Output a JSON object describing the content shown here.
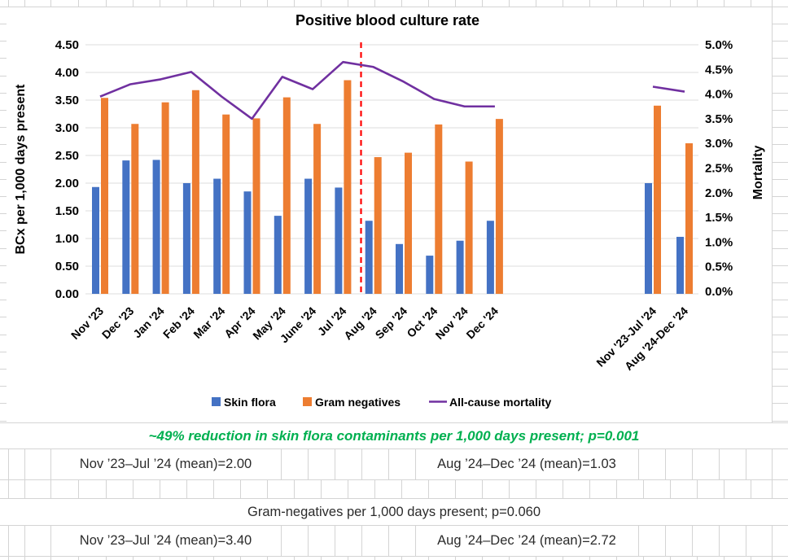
{
  "sheet": {
    "green_note": "~49% reduction in skin flora contaminants per 1,000 days present; p=0.001",
    "skin_mean_before": "Nov ’23–Jul ’24 (mean)=2.00",
    "skin_mean_after": "Aug ’24–Dec ’24 (mean)=1.03",
    "gram_header": "Gram-negatives per 1,000 days present; p=0.060",
    "gram_mean_before": "Nov ’23–Jul ’24 (mean)=3.40",
    "gram_mean_after": "Aug ’24–Dec ’24 (mean)=2.72"
  },
  "chart_data": {
    "type": "bar",
    "subtype": "grouped bars with secondary-axis line",
    "title": "Positive blood culture rate",
    "left_axis": {
      "label": "BCx per 1,000 days present",
      "range": [
        0,
        4.5
      ],
      "ticks": [
        "0.00",
        "0.50",
        "1.00",
        "1.50",
        "2.00",
        "2.50",
        "3.00",
        "3.50",
        "4.00",
        "4.50"
      ]
    },
    "right_axis": {
      "label": "Mortality",
      "range_pct": [
        0,
        5
      ],
      "ticks": [
        "0.0%",
        "0.5%",
        "1.0%",
        "1.5%",
        "2.0%",
        "2.5%",
        "3.0%",
        "3.5%",
        "4.0%",
        "4.5%",
        "5.0%"
      ]
    },
    "categories": [
      "Nov '23",
      "Dec '23",
      "Jan '24",
      "Feb '24",
      "Mar '24",
      "Apr '24",
      "May '24",
      "June '24",
      "Jul '24",
      "Aug '24",
      "Sep '24",
      "Oct '24",
      "Nov '24",
      "Dec '24"
    ],
    "summary_categories": [
      "Nov '23-Jul '24",
      "Aug '24-Dec '24"
    ],
    "series": [
      {
        "name": "Skin flora",
        "color": "#4472C4",
        "axis": "left",
        "values": [
          1.93,
          2.41,
          2.42,
          2.0,
          2.08,
          1.85,
          1.41,
          2.08,
          1.92,
          1.32,
          0.9,
          0.69,
          0.96,
          1.32
        ],
        "summary_values": [
          2.0,
          1.03
        ]
      },
      {
        "name": "Gram negatives",
        "color": "#ED7D31",
        "axis": "left",
        "values": [
          3.54,
          3.07,
          3.46,
          3.68,
          3.24,
          3.17,
          3.55,
          3.07,
          3.86,
          2.47,
          2.55,
          3.06,
          2.39,
          3.16
        ],
        "summary_values": [
          3.4,
          2.72
        ]
      },
      {
        "name": "All-cause mortality",
        "color": "#7030A0",
        "axis": "right",
        "values_pct": [
          3.95,
          4.2,
          4.3,
          4.45,
          3.95,
          3.5,
          4.35,
          4.1,
          4.65,
          4.55,
          4.25,
          3.9,
          3.75,
          3.75
        ],
        "summary_values_pct": [
          4.15,
          4.05
        ]
      }
    ],
    "divider_line": {
      "between": [
        "Jul '24",
        "Aug '24"
      ],
      "color": "#FF0000",
      "style": "dashed"
    },
    "legend": [
      "Skin flora",
      "Gram negatives",
      "All-cause mortality"
    ],
    "legend_position": "bottom",
    "grid": "horizontal light gray"
  }
}
